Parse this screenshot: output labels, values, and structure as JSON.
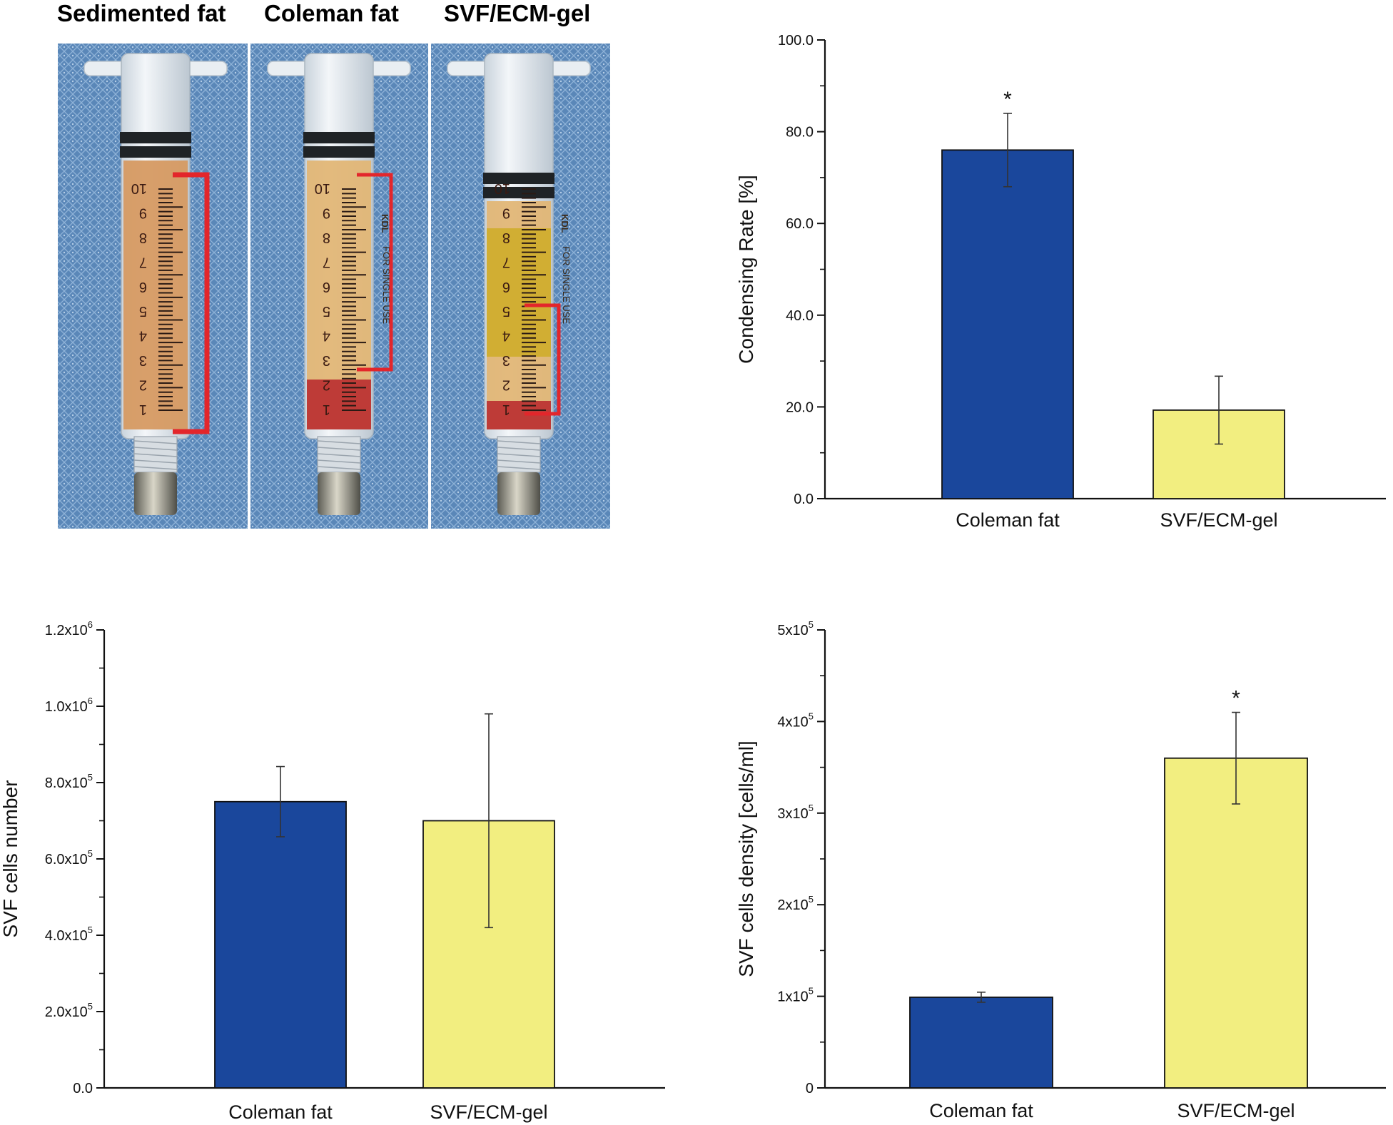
{
  "photo_panel": {
    "titles": [
      "Sedimented fat",
      "Coleman fat",
      "SVF/ECM-gel"
    ],
    "graduation_numbers": [
      "1",
      "2",
      "3",
      "4",
      "5",
      "6",
      "7",
      "8",
      "9",
      "10"
    ],
    "brand_text": "KDL",
    "single_use_text": "FOR SINGLE USE",
    "colors": {
      "drape": "#5a87b8",
      "fat_sedimented": "#d69a62",
      "fat_coleman": "#e2b676",
      "blood": "#b8292e",
      "gel_yellow": "#cfac2c",
      "bracket": "#e3262b",
      "barrel": "#dfe6ec",
      "cap": "#7b7b72"
    }
  },
  "colors": {
    "blue_bar": "#1a479c",
    "yellow_bar": "#f2ee80",
    "axis": "#111111"
  },
  "chart_data": [
    {
      "id": "condensing-rate",
      "type": "bar",
      "categories": [
        "Coleman fat",
        "SVF/ECM-gel"
      ],
      "values": [
        76.0,
        19.3
      ],
      "errors": [
        8.0,
        7.4
      ],
      "significance": [
        "*",
        ""
      ],
      "ylabel": "Condensing Rate [%]",
      "ylim": [
        0,
        100
      ],
      "yticks": [
        0,
        20,
        40,
        60,
        80,
        100
      ],
      "ytick_labels": [
        "0.0",
        "20.0",
        "40.0",
        "60.0",
        "80.0",
        "100.0"
      ]
    },
    {
      "id": "svf-cells-number",
      "type": "bar",
      "categories": [
        "Coleman fat",
        "SVF/ECM-gel"
      ],
      "values": [
        750000,
        700000
      ],
      "errors": [
        92000,
        280000
      ],
      "significance": [
        "",
        ""
      ],
      "ylabel": "SVF cells number",
      "ylim": [
        0,
        1200000
      ],
      "yticks": [
        0,
        200000,
        400000,
        600000,
        800000,
        1000000,
        1200000
      ],
      "ytick_labels": [
        "0.0",
        "2.0x10",
        "4.0x10",
        "6.0x10",
        "8.0x10",
        "1.0x10",
        "1.2x10"
      ],
      "ytick_exponents": [
        "",
        "5",
        "5",
        "5",
        "5",
        "6",
        "6"
      ]
    },
    {
      "id": "svf-cells-density",
      "type": "bar",
      "categories": [
        "Coleman fat",
        "SVF/ECM-gel"
      ],
      "values": [
        99000,
        360000
      ],
      "errors": [
        5500,
        50000
      ],
      "significance": [
        "",
        "*"
      ],
      "ylabel": "SVF cells density [cells/ml]",
      "ylim": [
        0,
        500000
      ],
      "yticks": [
        0,
        100000,
        200000,
        300000,
        400000,
        500000
      ],
      "ytick_labels": [
        "0",
        "1x10",
        "2x10",
        "3x10",
        "4x10",
        "5x10"
      ],
      "ytick_exponents": [
        "",
        "5",
        "5",
        "5",
        "5",
        "5"
      ]
    }
  ]
}
